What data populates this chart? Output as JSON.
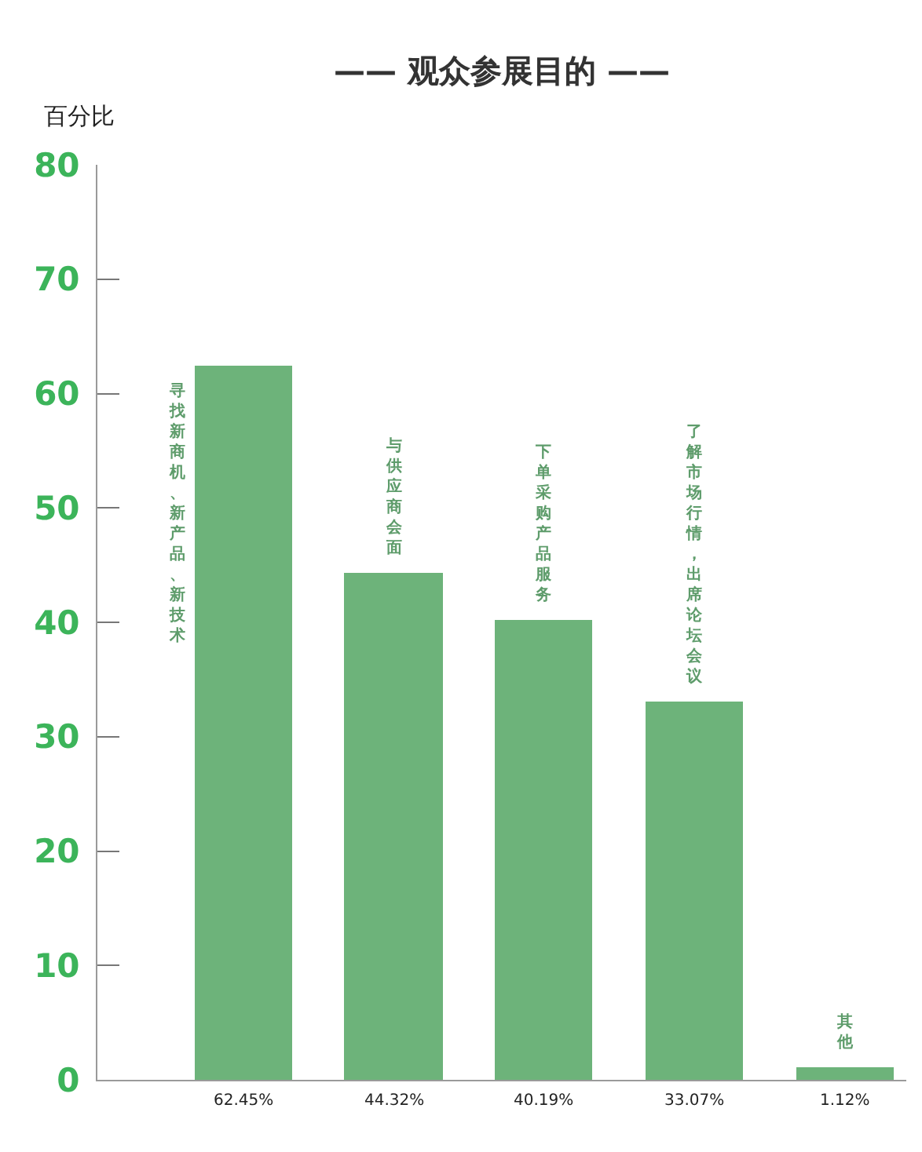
{
  "chart_data": {
    "type": "bar",
    "title": "—— 观众参展目的 ——",
    "ylabel": "百分比",
    "categories": [
      "寻找新商机、新产品、新技术",
      "与供应商会面",
      "下单采购产品服务",
      "了解市场行情，出席论坛会议",
      "其他"
    ],
    "values": [
      62.45,
      44.32,
      40.19,
      33.07,
      1.12
    ],
    "value_labels": [
      "62.45%",
      "44.32%",
      "40.19%",
      "33.07%",
      "1.12%"
    ],
    "color": "#6db37a",
    "ylim": [
      0,
      80
    ],
    "yticks": [
      0,
      10,
      20,
      30,
      40,
      50,
      60,
      70,
      80
    ]
  }
}
